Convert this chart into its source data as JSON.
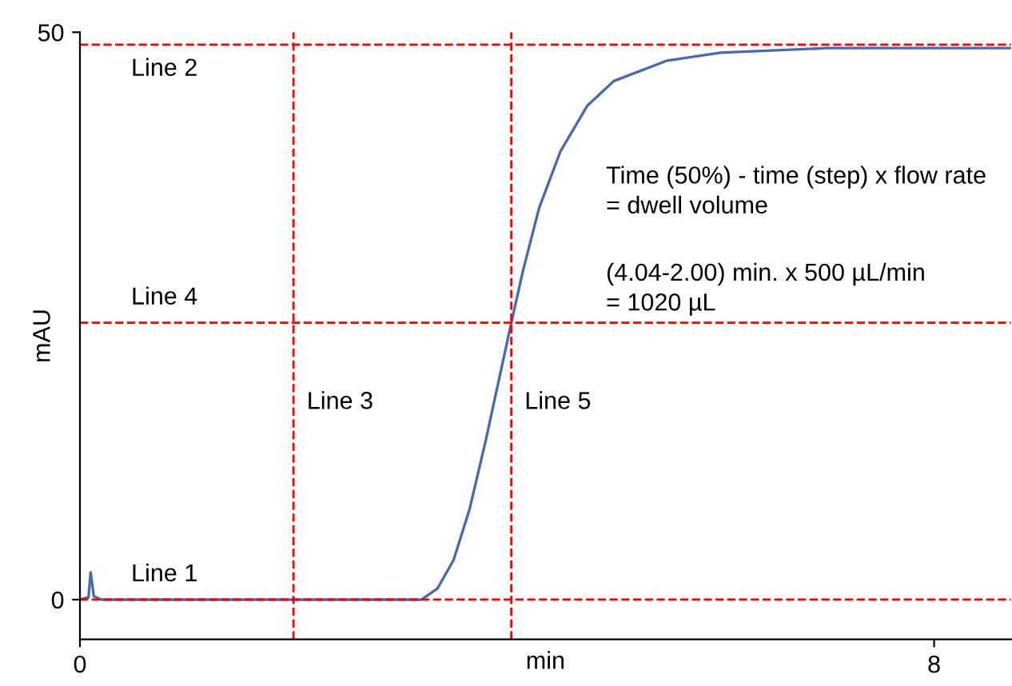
{
  "chart_data": {
    "type": "line",
    "xlabel": "min",
    "ylabel": "mAU",
    "x": [
      0,
      0.08,
      0.1,
      0.13,
      0.2,
      3.2,
      3.35,
      3.5,
      3.65,
      3.8,
      3.95,
      4.04,
      4.15,
      4.3,
      4.5,
      4.75,
      5.0,
      5.5,
      6.0,
      7.0,
      8.72
    ],
    "series": [
      {
        "color": "#4a6ab0",
        "values": [
          0,
          0.2,
          2.4,
          0.3,
          0,
          0,
          1,
          3.5,
          8,
          14,
          20.5,
          24.4,
          29,
          34.5,
          39.5,
          43.5,
          45.7,
          47.5,
          48.2,
          48.6,
          48.6
        ]
      }
    ],
    "xlim": [
      0,
      8.72
    ],
    "xticks": [
      0,
      8
    ],
    "ylim": [
      -3.5,
      50
    ],
    "yticks": [
      0,
      50
    ],
    "grid": false,
    "legend": false,
    "marker": "none",
    "line_style": "solid",
    "ref_lines": [
      {
        "axis": "y",
        "value": 0,
        "label": "Line 1",
        "color": "#ff0000",
        "line_style": "dashed"
      },
      {
        "axis": "y",
        "value": 48.9,
        "label": "Line 2",
        "color": "#ff0000",
        "line_style": "dashed"
      },
      {
        "axis": "x",
        "value": 2.0,
        "label": "Line 3",
        "color": "#ff0000",
        "line_style": "dashed"
      },
      {
        "axis": "y",
        "value": 24.4,
        "label": "Line 4",
        "color": "#ff0000",
        "line_style": "dashed"
      },
      {
        "axis": "x",
        "value": 4.04,
        "label": "Line 5",
        "color": "#ff0000",
        "line_style": "dashed"
      }
    ],
    "annotations": [
      "Time (50%) - time (step) x flow rate\n= dwell volume",
      "(4.04-2.00) min. x 500 µL/min\n= 1020 µL"
    ]
  }
}
